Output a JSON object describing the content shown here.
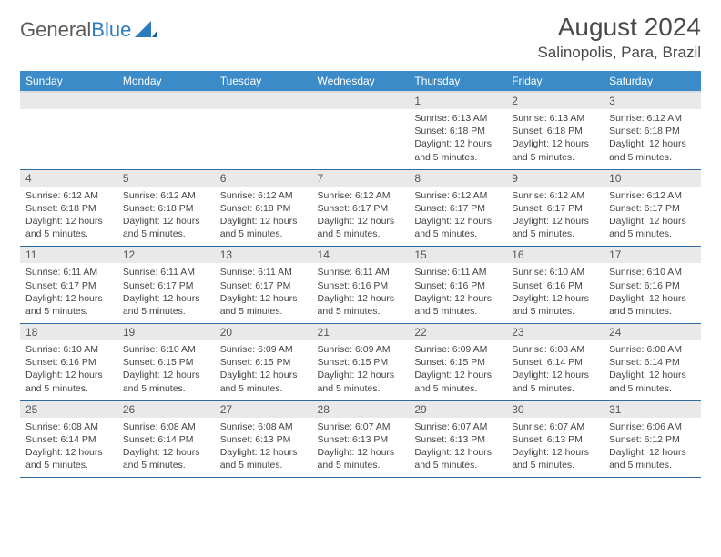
{
  "brand": {
    "part1": "General",
    "part2": "Blue"
  },
  "title": "August 2024",
  "location": "Salinopolis, Para, Brazil",
  "colors": {
    "header_bg": "#3b8bc8",
    "header_text": "#ffffff",
    "date_bg": "#e9e9e9",
    "row_border": "#2f6aa3",
    "body_text": "#444444",
    "title_text": "#4a4a4a"
  },
  "day_names": [
    "Sunday",
    "Monday",
    "Tuesday",
    "Wednesday",
    "Thursday",
    "Friday",
    "Saturday"
  ],
  "weeks": [
    [
      {
        "empty": true
      },
      {
        "empty": true
      },
      {
        "empty": true
      },
      {
        "empty": true
      },
      {
        "date": "1",
        "sunrise": "6:13 AM",
        "sunset": "6:18 PM",
        "daylight": "12 hours and 5 minutes."
      },
      {
        "date": "2",
        "sunrise": "6:13 AM",
        "sunset": "6:18 PM",
        "daylight": "12 hours and 5 minutes."
      },
      {
        "date": "3",
        "sunrise": "6:12 AM",
        "sunset": "6:18 PM",
        "daylight": "12 hours and 5 minutes."
      }
    ],
    [
      {
        "date": "4",
        "sunrise": "6:12 AM",
        "sunset": "6:18 PM",
        "daylight": "12 hours and 5 minutes."
      },
      {
        "date": "5",
        "sunrise": "6:12 AM",
        "sunset": "6:18 PM",
        "daylight": "12 hours and 5 minutes."
      },
      {
        "date": "6",
        "sunrise": "6:12 AM",
        "sunset": "6:18 PM",
        "daylight": "12 hours and 5 minutes."
      },
      {
        "date": "7",
        "sunrise": "6:12 AM",
        "sunset": "6:17 PM",
        "daylight": "12 hours and 5 minutes."
      },
      {
        "date": "8",
        "sunrise": "6:12 AM",
        "sunset": "6:17 PM",
        "daylight": "12 hours and 5 minutes."
      },
      {
        "date": "9",
        "sunrise": "6:12 AM",
        "sunset": "6:17 PM",
        "daylight": "12 hours and 5 minutes."
      },
      {
        "date": "10",
        "sunrise": "6:12 AM",
        "sunset": "6:17 PM",
        "daylight": "12 hours and 5 minutes."
      }
    ],
    [
      {
        "date": "11",
        "sunrise": "6:11 AM",
        "sunset": "6:17 PM",
        "daylight": "12 hours and 5 minutes."
      },
      {
        "date": "12",
        "sunrise": "6:11 AM",
        "sunset": "6:17 PM",
        "daylight": "12 hours and 5 minutes."
      },
      {
        "date": "13",
        "sunrise": "6:11 AM",
        "sunset": "6:17 PM",
        "daylight": "12 hours and 5 minutes."
      },
      {
        "date": "14",
        "sunrise": "6:11 AM",
        "sunset": "6:16 PM",
        "daylight": "12 hours and 5 minutes."
      },
      {
        "date": "15",
        "sunrise": "6:11 AM",
        "sunset": "6:16 PM",
        "daylight": "12 hours and 5 minutes."
      },
      {
        "date": "16",
        "sunrise": "6:10 AM",
        "sunset": "6:16 PM",
        "daylight": "12 hours and 5 minutes."
      },
      {
        "date": "17",
        "sunrise": "6:10 AM",
        "sunset": "6:16 PM",
        "daylight": "12 hours and 5 minutes."
      }
    ],
    [
      {
        "date": "18",
        "sunrise": "6:10 AM",
        "sunset": "6:16 PM",
        "daylight": "12 hours and 5 minutes."
      },
      {
        "date": "19",
        "sunrise": "6:10 AM",
        "sunset": "6:15 PM",
        "daylight": "12 hours and 5 minutes."
      },
      {
        "date": "20",
        "sunrise": "6:09 AM",
        "sunset": "6:15 PM",
        "daylight": "12 hours and 5 minutes."
      },
      {
        "date": "21",
        "sunrise": "6:09 AM",
        "sunset": "6:15 PM",
        "daylight": "12 hours and 5 minutes."
      },
      {
        "date": "22",
        "sunrise": "6:09 AM",
        "sunset": "6:15 PM",
        "daylight": "12 hours and 5 minutes."
      },
      {
        "date": "23",
        "sunrise": "6:08 AM",
        "sunset": "6:14 PM",
        "daylight": "12 hours and 5 minutes."
      },
      {
        "date": "24",
        "sunrise": "6:08 AM",
        "sunset": "6:14 PM",
        "daylight": "12 hours and 5 minutes."
      }
    ],
    [
      {
        "date": "25",
        "sunrise": "6:08 AM",
        "sunset": "6:14 PM",
        "daylight": "12 hours and 5 minutes."
      },
      {
        "date": "26",
        "sunrise": "6:08 AM",
        "sunset": "6:14 PM",
        "daylight": "12 hours and 5 minutes."
      },
      {
        "date": "27",
        "sunrise": "6:08 AM",
        "sunset": "6:13 PM",
        "daylight": "12 hours and 5 minutes."
      },
      {
        "date": "28",
        "sunrise": "6:07 AM",
        "sunset": "6:13 PM",
        "daylight": "12 hours and 5 minutes."
      },
      {
        "date": "29",
        "sunrise": "6:07 AM",
        "sunset": "6:13 PM",
        "daylight": "12 hours and 5 minutes."
      },
      {
        "date": "30",
        "sunrise": "6:07 AM",
        "sunset": "6:13 PM",
        "daylight": "12 hours and 5 minutes."
      },
      {
        "date": "31",
        "sunrise": "6:06 AM",
        "sunset": "6:12 PM",
        "daylight": "12 hours and 5 minutes."
      }
    ]
  ],
  "labels": {
    "sunrise": "Sunrise: ",
    "sunset": "Sunset: ",
    "daylight": "Daylight: "
  }
}
